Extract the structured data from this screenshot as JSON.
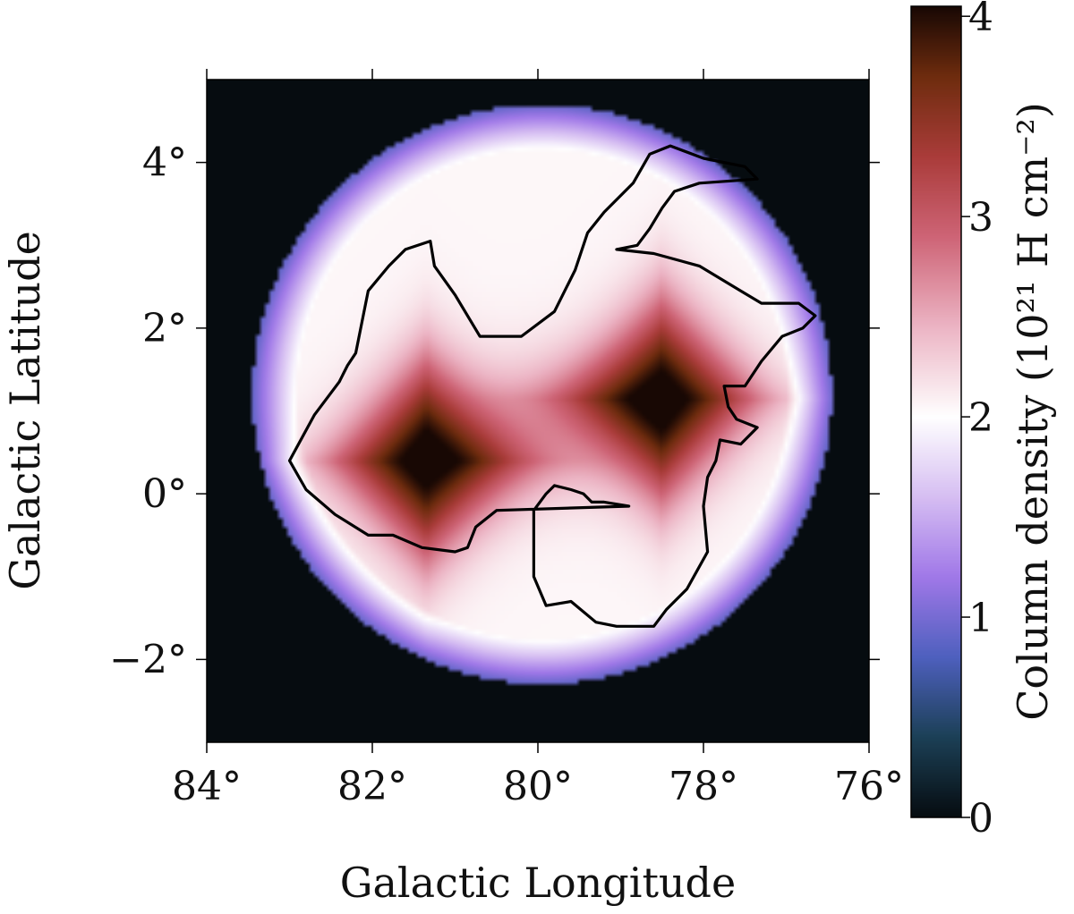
{
  "chart_data": {
    "type": "heatmap",
    "title": "",
    "xlabel": "Galactic Longitude",
    "ylabel": "Galactic Latitude",
    "xlim": [
      84,
      76
    ],
    "ylim": [
      -3,
      5
    ],
    "x_ticks": [
      84,
      82,
      80,
      78,
      76
    ],
    "x_tick_labels": [
      "84°",
      "82°",
      "80°",
      "78°",
      "76°"
    ],
    "y_ticks": [
      4,
      2,
      0,
      -2
    ],
    "y_tick_labels": [
      "4°",
      "2°",
      "0°",
      "−2°"
    ],
    "colorbar": {
      "label": "Column density (10²¹ H cm⁻²)",
      "range": [
        0,
        4.05
      ],
      "ticks": [
        0,
        1,
        2,
        3,
        4
      ],
      "tick_labels": [
        "0",
        "1",
        "2",
        "3",
        "4"
      ],
      "colormap": "cubehelix-like (black → blue → purple → white → pink → brown → black)"
    },
    "background_value": 0,
    "disk": {
      "center_l": 79.95,
      "center_b": 1.2,
      "radius_deg": 3.5
    },
    "peaks": [
      {
        "l": 81.35,
        "b": 0.4,
        "value": 4.0
      },
      {
        "l": 78.5,
        "b": 1.15,
        "value": 4.0
      }
    ],
    "contour_level": 2.0,
    "contour_path": [
      [
        83.0,
        0.4
      ],
      [
        82.7,
        0.95
      ],
      [
        82.4,
        1.35
      ],
      [
        82.3,
        1.55
      ],
      [
        82.2,
        1.7
      ],
      [
        82.05,
        2.45
      ],
      [
        81.8,
        2.75
      ],
      [
        81.6,
        2.95
      ],
      [
        81.3,
        3.05
      ],
      [
        81.25,
        2.75
      ],
      [
        81.0,
        2.4
      ],
      [
        80.7,
        1.9
      ],
      [
        80.2,
        1.9
      ],
      [
        79.8,
        2.2
      ],
      [
        79.55,
        2.7
      ],
      [
        79.4,
        3.15
      ],
      [
        79.2,
        3.4
      ],
      [
        78.85,
        3.75
      ],
      [
        78.65,
        4.1
      ],
      [
        78.4,
        4.2
      ],
      [
        78.0,
        4.05
      ],
      [
        77.5,
        3.95
      ],
      [
        77.35,
        3.8
      ],
      [
        78.05,
        3.75
      ],
      [
        78.35,
        3.65
      ],
      [
        78.5,
        3.45
      ],
      [
        78.65,
        3.2
      ],
      [
        78.8,
        3.0
      ],
      [
        79.05,
        2.95
      ],
      [
        78.6,
        2.9
      ],
      [
        78.05,
        2.75
      ],
      [
        77.55,
        2.45
      ],
      [
        77.3,
        2.3
      ],
      [
        77.05,
        2.3
      ],
      [
        76.85,
        2.3
      ],
      [
        76.65,
        2.15
      ],
      [
        76.8,
        2.0
      ],
      [
        77.05,
        1.9
      ],
      [
        77.3,
        1.6
      ],
      [
        77.5,
        1.3
      ],
      [
        77.75,
        1.3
      ],
      [
        77.7,
        1.05
      ],
      [
        77.6,
        0.9
      ],
      [
        77.35,
        0.8
      ],
      [
        77.55,
        0.6
      ],
      [
        77.8,
        0.65
      ],
      [
        77.85,
        0.4
      ],
      [
        77.95,
        0.2
      ],
      [
        78.0,
        -0.15
      ],
      [
        77.95,
        -0.7
      ],
      [
        78.2,
        -1.15
      ],
      [
        78.45,
        -1.4
      ],
      [
        78.6,
        -1.6
      ],
      [
        79.05,
        -1.6
      ],
      [
        79.3,
        -1.55
      ],
      [
        79.6,
        -1.3
      ],
      [
        79.9,
        -1.35
      ],
      [
        80.05,
        -1.0
      ],
      [
        80.05,
        -0.2
      ],
      [
        79.9,
        0.0
      ],
      [
        79.8,
        0.1
      ],
      [
        79.6,
        0.05
      ],
      [
        79.45,
        0.0
      ],
      [
        79.35,
        -0.1
      ],
      [
        79.2,
        -0.1
      ],
      [
        78.9,
        -0.15
      ],
      [
        80.5,
        -0.2
      ],
      [
        80.75,
        -0.4
      ],
      [
        80.85,
        -0.65
      ],
      [
        81.0,
        -0.7
      ],
      [
        81.4,
        -0.65
      ],
      [
        81.75,
        -0.5
      ],
      [
        82.05,
        -0.5
      ],
      [
        82.45,
        -0.25
      ],
      [
        82.8,
        0.05
      ],
      [
        83.0,
        0.4
      ]
    ]
  }
}
